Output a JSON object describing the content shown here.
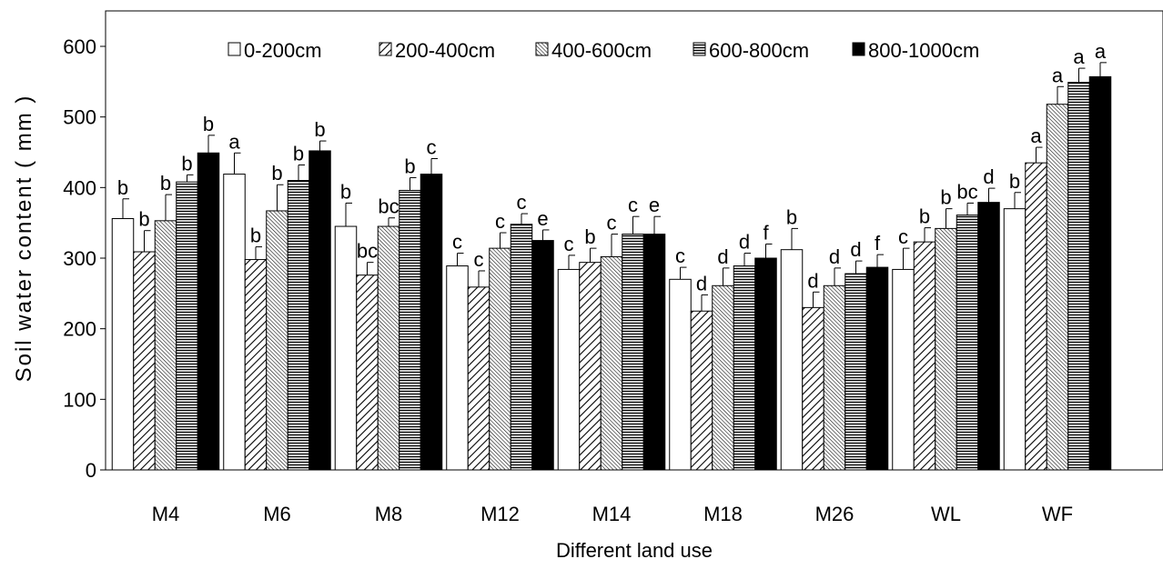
{
  "chart_data": {
    "type": "bar",
    "title": "",
    "xlabel": "Different land use",
    "ylabel": "Soil water content ( mm )",
    "ylim": [
      0,
      600
    ],
    "yticks": [
      "0",
      "100",
      "200",
      "300",
      "400",
      "500",
      "600"
    ],
    "grid": false,
    "legend_position": "top",
    "categories": [
      "M4",
      "M6",
      "M8",
      "M12",
      "M14",
      "M18",
      "M26",
      "WL",
      "WF"
    ],
    "series": [
      {
        "name": "0-200cm",
        "pattern": "white",
        "values": [
          356,
          419,
          345,
          289,
          284,
          270,
          312,
          284,
          370
        ],
        "errors": [
          28,
          30,
          33,
          18,
          20,
          17,
          30,
          30,
          23
        ],
        "labels": [
          "b",
          "a",
          "b",
          "c",
          "c",
          "c",
          "b",
          "c",
          "b"
        ]
      },
      {
        "name": "200-400cm",
        "pattern": "diag-wide",
        "values": [
          309,
          298,
          276,
          259,
          294,
          225,
          230,
          323,
          435
        ],
        "errors": [
          30,
          18,
          18,
          23,
          20,
          23,
          22,
          20,
          22
        ],
        "labels": [
          "b",
          "b",
          "bc",
          "c",
          "b",
          "d",
          "d",
          "b",
          "a"
        ]
      },
      {
        "name": "400-600cm",
        "pattern": "diag-fine",
        "values": [
          353,
          367,
          345,
          314,
          302,
          261,
          261,
          342,
          518
        ],
        "errors": [
          37,
          37,
          12,
          22,
          32,
          25,
          25,
          28,
          25
        ],
        "labels": [
          "b",
          "b",
          "bc",
          "c",
          "c",
          "d",
          "d",
          "b",
          "a"
        ]
      },
      {
        "name": "600-800cm",
        "pattern": "horizontal",
        "values": [
          408,
          410,
          396,
          348,
          334,
          289,
          278,
          361,
          549
        ],
        "errors": [
          10,
          22,
          18,
          15,
          25,
          18,
          18,
          17,
          20
        ],
        "labels": [
          "b",
          "b",
          "b",
          "c",
          "c",
          "d",
          "d",
          "bc",
          "a"
        ]
      },
      {
        "name": "800-1000cm",
        "pattern": "black",
        "values": [
          449,
          452,
          419,
          325,
          334,
          300,
          287,
          379,
          557
        ],
        "errors": [
          25,
          14,
          22,
          15,
          25,
          20,
          18,
          20,
          20
        ],
        "labels": [
          "b",
          "b",
          "c",
          "e",
          "e",
          "f",
          "f",
          "d",
          "a"
        ]
      }
    ]
  }
}
